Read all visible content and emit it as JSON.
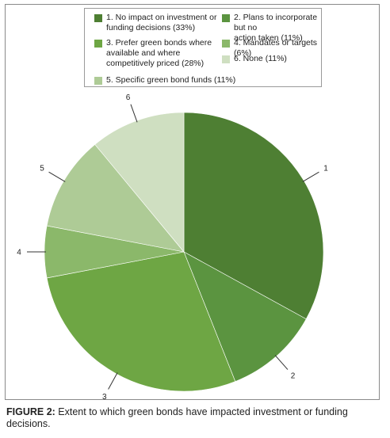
{
  "chart_data": {
    "type": "pie",
    "slices": [
      {
        "number": "1",
        "legend": "1. No impact on investment or funding decisions (33%)",
        "value": 33,
        "color": "#4e7f33"
      },
      {
        "number": "2",
        "legend": "2. Plans to incorporate but no action taken (11%)",
        "value": 11,
        "color": "#5b9440"
      },
      {
        "number": "3",
        "legend": "3. Prefer green bonds where available and where competitively priced (28%)",
        "value": 28,
        "color": "#6ea644"
      },
      {
        "number": "4",
        "legend": "4. Mandates or targets (6%)",
        "value": 6,
        "color": "#8bb86a"
      },
      {
        "number": "5",
        "legend": "5. Specific green bond funds (11%)",
        "value": 11,
        "color": "#aecb96"
      },
      {
        "number": "6",
        "legend": "6. None (11%)",
        "value": 11,
        "color": "#cfdfc1"
      }
    ],
    "legend_position": "top"
  },
  "legend_lines": {
    "item1": "1. No impact on investment or\nfunding decisions (33%)",
    "item2": "2. Plans to incorporate but no\naction taken (11%)",
    "item3": "3. Prefer green bonds where\navailable and where\ncompetitively priced (28%)",
    "item4": "4. Mandates or targets (6%)",
    "item5": "5. Specific green bond funds (11%)",
    "item6": "6. None (11%)"
  },
  "caption": {
    "label": "FIGURE 2:",
    "text": " Extent to which green bonds have impacted investment or funding decisions."
  }
}
